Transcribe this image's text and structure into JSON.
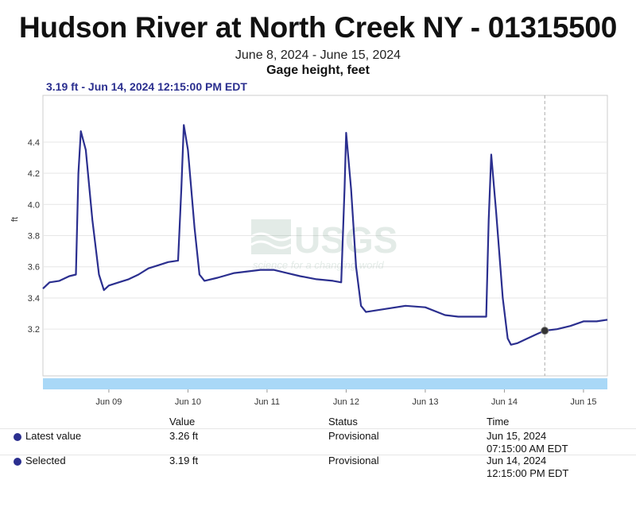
{
  "header": {
    "title": "Hudson River at North Creek NY - 01315500",
    "date_range": "June 8, 2024 - June 15, 2024",
    "parameter": "Gage height, feet",
    "selected_point": "3.19 ft - Jun 14, 2024 12:15:00 PM EDT"
  },
  "watermark": {
    "logo": "USGS",
    "tagline": "science for a changing world"
  },
  "colors": {
    "series": "#2b2f8f",
    "navigator": "#a9d8f7",
    "grid": "#e6e6e6"
  },
  "chart_data": {
    "type": "line",
    "title": "Hudson River at North Creek NY - 01315500",
    "subtitle": "Gage height, feet",
    "xlabel": "",
    "ylabel": "ft",
    "x_domain": [
      "2024-06-08 04:00",
      "2024-06-15 07:15"
    ],
    "ylim": [
      2.9,
      4.7
    ],
    "y_ticks": [
      3.2,
      3.4,
      3.6,
      3.8,
      4.0,
      4.2,
      4.4
    ],
    "x_ticks": [
      {
        "label": "Jun 09",
        "date": "2024-06-09 00:00"
      },
      {
        "label": "Jun 10",
        "date": "2024-06-10 00:00"
      },
      {
        "label": "Jun 11",
        "date": "2024-06-11 00:00"
      },
      {
        "label": "Jun 12",
        "date": "2024-06-12 00:00"
      },
      {
        "label": "Jun 13",
        "date": "2024-06-13 00:00"
      },
      {
        "label": "Jun 14",
        "date": "2024-06-14 00:00"
      },
      {
        "label": "Jun 15",
        "date": "2024-06-15 00:00"
      }
    ],
    "grid": true,
    "series": [
      {
        "points": [
          [
            "2024-06-08 04:00",
            3.46
          ],
          [
            "2024-06-08 06:00",
            3.5
          ],
          [
            "2024-06-08 09:00",
            3.51
          ],
          [
            "2024-06-08 12:00",
            3.54
          ],
          [
            "2024-06-08 14:00",
            3.55
          ],
          [
            "2024-06-08 14:45",
            4.2
          ],
          [
            "2024-06-08 15:30",
            4.47
          ],
          [
            "2024-06-08 17:00",
            4.35
          ],
          [
            "2024-06-08 19:00",
            3.9
          ],
          [
            "2024-06-08 21:00",
            3.55
          ],
          [
            "2024-06-08 22:30",
            3.45
          ],
          [
            "2024-06-09 00:00",
            3.48
          ],
          [
            "2024-06-09 03:00",
            3.5
          ],
          [
            "2024-06-09 06:00",
            3.52
          ],
          [
            "2024-06-09 09:00",
            3.55
          ],
          [
            "2024-06-09 12:00",
            3.59
          ],
          [
            "2024-06-09 15:00",
            3.61
          ],
          [
            "2024-06-09 18:00",
            3.63
          ],
          [
            "2024-06-09 21:00",
            3.64
          ],
          [
            "2024-06-09 22:00",
            4.1
          ],
          [
            "2024-06-09 22:45",
            4.51
          ],
          [
            "2024-06-10 00:00",
            4.35
          ],
          [
            "2024-06-10 02:00",
            3.85
          ],
          [
            "2024-06-10 03:30",
            3.55
          ],
          [
            "2024-06-10 05:00",
            3.51
          ],
          [
            "2024-06-10 09:00",
            3.53
          ],
          [
            "2024-06-10 14:00",
            3.56
          ],
          [
            "2024-06-10 18:00",
            3.57
          ],
          [
            "2024-06-10 22:00",
            3.58
          ],
          [
            "2024-06-11 02:00",
            3.58
          ],
          [
            "2024-06-11 06:00",
            3.56
          ],
          [
            "2024-06-11 10:00",
            3.54
          ],
          [
            "2024-06-11 15:00",
            3.52
          ],
          [
            "2024-06-11 20:00",
            3.51
          ],
          [
            "2024-06-11 22:30",
            3.5
          ],
          [
            "2024-06-11 23:30",
            4.1
          ],
          [
            "2024-06-12 00:00",
            4.46
          ],
          [
            "2024-06-12 01:30",
            4.1
          ],
          [
            "2024-06-12 03:00",
            3.6
          ],
          [
            "2024-06-12 04:30",
            3.35
          ],
          [
            "2024-06-12 06:00",
            3.31
          ],
          [
            "2024-06-12 12:00",
            3.33
          ],
          [
            "2024-06-12 18:00",
            3.35
          ],
          [
            "2024-06-13 00:00",
            3.34
          ],
          [
            "2024-06-13 06:00",
            3.29
          ],
          [
            "2024-06-13 10:00",
            3.28
          ],
          [
            "2024-06-13 15:00",
            3.28
          ],
          [
            "2024-06-13 18:30",
            3.28
          ],
          [
            "2024-06-13 19:15",
            3.9
          ],
          [
            "2024-06-13 20:00",
            4.32
          ],
          [
            "2024-06-13 21:30",
            3.95
          ],
          [
            "2024-06-13 23:30",
            3.4
          ],
          [
            "2024-06-14 01:00",
            3.14
          ],
          [
            "2024-06-14 02:00",
            3.1
          ],
          [
            "2024-06-14 04:00",
            3.11
          ],
          [
            "2024-06-14 07:00",
            3.14
          ],
          [
            "2024-06-14 10:00",
            3.17
          ],
          [
            "2024-06-14 12:15",
            3.19
          ],
          [
            "2024-06-14 16:00",
            3.2
          ],
          [
            "2024-06-14 20:00",
            3.22
          ],
          [
            "2024-06-15 00:00",
            3.25
          ],
          [
            "2024-06-15 04:00",
            3.25
          ],
          [
            "2024-06-15 07:15",
            3.26
          ]
        ]
      }
    ],
    "selected": {
      "x": "2024-06-14 12:15",
      "y": 3.19
    }
  },
  "table": {
    "headers": {
      "value": "Value",
      "status": "Status",
      "time": "Time"
    },
    "rows": [
      {
        "label": "Latest value",
        "value": "3.26 ft",
        "status": "Provisional",
        "time_line1": "Jun 15, 2024",
        "time_line2": "07:15:00 AM EDT"
      },
      {
        "label": "Selected",
        "value": "3.19 ft",
        "status": "Provisional",
        "time_line1": "Jun 14, 2024",
        "time_line2": "12:15:00 PM EDT"
      }
    ]
  }
}
